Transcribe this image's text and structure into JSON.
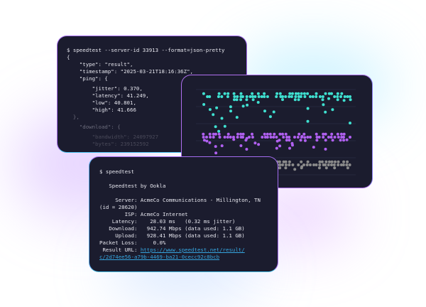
{
  "json_window": {
    "command": "$ speedtest --server-id 33913 --format=json-pretty",
    "lines": [
      "{",
      "    \"type\": \"result\",",
      "    \"timestamp\": \"2025-03-21T18:16:36Z\",",
      "    \"ping\": {",
      "        \"jitter\": 0.370,",
      "        \"latency\": 41.249,",
      "        \"low\": 40.801,",
      "        \"high\": 41.666",
      "  },",
      "    \"download\": {",
      "        \"bandwidth\": 24097927",
      "        \"bytes\": 239152592"
    ]
  },
  "chart_window": {
    "colors": {
      "top": "#3fe0d0",
      "middle": "#b060f0",
      "bottom": "#8a8a8a",
      "grid": "#2a2c44"
    }
  },
  "cli_window": {
    "command": "$ speedtest",
    "title": "   Speedtest by Ookla",
    "server": "     Server: AcmeCo Communications - Millington, TN",
    "server_id": "(id = 28620)",
    "isp": "        ISP: AcmeCo Internet",
    "latency": "    Latency:    28.03 ms   (0.32 ms jitter)",
    "download": "   Download:   942.74 Mbps (data used: 1.1 GB)",
    "upload": "     Upload:   928.41 Mbps (data used: 1.1 GB)",
    "packet_loss": "Packet Loss:     0.0%",
    "result_label": " Result URL: ",
    "result_url_1": "https://www.speedtest.net/result/",
    "result_url_2": "c/2d74ee56-a79b-4469-ba21-0cecc92c8bcb"
  }
}
